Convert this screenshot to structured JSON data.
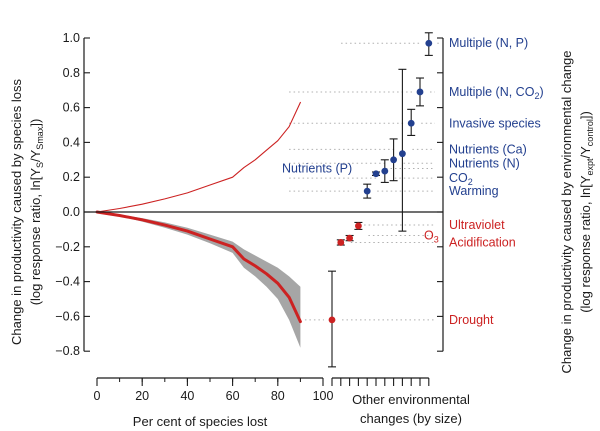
{
  "chart_data": {
    "type": "line",
    "colors": {
      "positive": "#23408f",
      "negative": "#cc2222",
      "ci_band": "#a6a6a6",
      "axis": "#1a1a1a",
      "guide": "#b0b0b0"
    },
    "left_axis": {
      "title_line1": "Change in productivity caused by species loss",
      "title_line2": "(log response ratio, ln[Y",
      "title_sub1": "S",
      "title_mid": "/Y",
      "title_sub2": "Smax",
      "title_end": "])",
      "ylim": [
        -0.85,
        1.05
      ],
      "ticks": [
        {
          "value": 1.0,
          "label": "1.0"
        },
        {
          "value": 0.8,
          "label": "0.8"
        },
        {
          "value": 0.6,
          "label": "0.6"
        },
        {
          "value": 0.4,
          "label": "0.4"
        },
        {
          "value": 0.2,
          "label": "0.2"
        },
        {
          "value": 0.0,
          "label": "0.0"
        },
        {
          "value": -0.2,
          "label": "−0.2"
        },
        {
          "value": -0.4,
          "label": "−0.4"
        },
        {
          "value": -0.6,
          "label": "−0.6"
        },
        {
          "value": -0.8,
          "label": "−0.8"
        }
      ]
    },
    "right_axis": {
      "title_line1": "Change in productivity caused by environmental change",
      "title_line2": "(log response ratio, ln[Y",
      "title_sub1": "expt",
      "title_mid": "/Y",
      "title_sub2": "control",
      "title_end": "])"
    },
    "x_axis": {
      "label": "Per cent of species lost",
      "xlim": [
        0,
        100
      ],
      "ticks": [
        {
          "value": 0,
          "label": "0"
        },
        {
          "value": 20,
          "label": "20"
        },
        {
          "value": 40,
          "label": "40"
        },
        {
          "value": 60,
          "label": "60"
        },
        {
          "value": 80,
          "label": "80"
        },
        {
          "value": 100,
          "label": "100"
        }
      ]
    },
    "env_axis": {
      "label_line1": "Other environmental",
      "label_line2": "changes (by size)"
    },
    "series": [
      {
        "name": "Species loss (mean)",
        "x": [
          0,
          10,
          20,
          30,
          40,
          50,
          60,
          65,
          70,
          75,
          80,
          85,
          90
        ],
        "y": [
          0,
          -0.02,
          -0.045,
          -0.075,
          -0.11,
          -0.155,
          -0.2,
          -0.27,
          -0.31,
          -0.355,
          -0.41,
          -0.49,
          -0.63
        ]
      },
      {
        "name": "Species loss (upper CI)",
        "x": [
          0,
          10,
          20,
          30,
          40,
          50,
          60,
          65,
          70,
          75,
          80,
          85,
          90
        ],
        "y": [
          0,
          -0.015,
          -0.035,
          -0.06,
          -0.09,
          -0.13,
          -0.17,
          -0.215,
          -0.25,
          -0.285,
          -0.32,
          -0.37,
          -0.43
        ]
      },
      {
        "name": "Species loss (lower CI)",
        "x": [
          0,
          10,
          20,
          30,
          40,
          50,
          60,
          65,
          70,
          75,
          80,
          85,
          90
        ],
        "y": [
          0,
          -0.025,
          -0.055,
          -0.09,
          -0.13,
          -0.18,
          -0.235,
          -0.32,
          -0.37,
          -0.43,
          -0.5,
          -0.62,
          -0.78
        ]
      },
      {
        "name": "Inverse species loss",
        "x": [
          0,
          10,
          20,
          30,
          40,
          50,
          60,
          65,
          70,
          75,
          80,
          85,
          90
        ],
        "y": [
          0,
          0.02,
          0.045,
          0.075,
          0.11,
          0.155,
          0.2,
          0.255,
          0.3,
          0.355,
          0.41,
          0.49,
          0.63
        ]
      }
    ],
    "env_changes": [
      {
        "id": "drought",
        "label": "Drought",
        "y": -0.62,
        "lo": -0.89,
        "hi": -0.34,
        "sign": "negative",
        "label_y": -0.62
      },
      {
        "id": "acidification",
        "label": "Acidification",
        "y": -0.175,
        "lo": -0.19,
        "hi": -0.16,
        "sign": "negative",
        "label_y": -0.175
      },
      {
        "id": "ultraviolet",
        "label": "Ultraviolet",
        "y": -0.15,
        "lo": -0.165,
        "hi": -0.135,
        "sign": "negative",
        "label_y": -0.075
      },
      {
        "id": "ozone",
        "label": "O",
        "label_sub": "3",
        "y": -0.08,
        "lo": -0.1,
        "hi": -0.06,
        "sign": "negative",
        "label_y": -0.135
      },
      {
        "id": "warming",
        "label": "Warming",
        "y": 0.12,
        "lo": 0.08,
        "hi": 0.16,
        "sign": "positive",
        "label_y": 0.12
      },
      {
        "id": "nutrients-p",
        "label": "Nutrients (P)",
        "y": 0.22,
        "lo": 0.21,
        "hi": 0.23,
        "sign": "positive",
        "label_y": 0.25
      },
      {
        "id": "co2",
        "label": "CO",
        "label_sub": "2",
        "y": 0.235,
        "lo": 0.17,
        "hi": 0.3,
        "sign": "positive",
        "label_y": 0.195
      },
      {
        "id": "nutrients-n",
        "label": "Nutrients (N)",
        "y": 0.3,
        "lo": 0.18,
        "hi": 0.42,
        "sign": "positive",
        "label_y": 0.28
      },
      {
        "id": "nutrients-ca",
        "label": "Nutrients (Ca)",
        "y": 0.335,
        "lo": -0.11,
        "hi": 0.82,
        "sign": "positive",
        "label_y": 0.36
      },
      {
        "id": "invasive-species",
        "label": "Invasive species",
        "y": 0.51,
        "lo": 0.44,
        "hi": 0.59,
        "sign": "positive",
        "label_y": 0.51
      },
      {
        "id": "multiple-n-co2",
        "label": "Multiple (N, CO",
        "label_sub": "2",
        "label_end": ")",
        "y": 0.69,
        "lo": 0.61,
        "hi": 0.77,
        "sign": "positive",
        "label_y": 0.69
      },
      {
        "id": "multiple-n-p",
        "label": "Multiple (N, P)",
        "y": 0.97,
        "lo": 0.9,
        "hi": 1.03,
        "sign": "positive",
        "label_y": 0.97
      }
    ]
  }
}
